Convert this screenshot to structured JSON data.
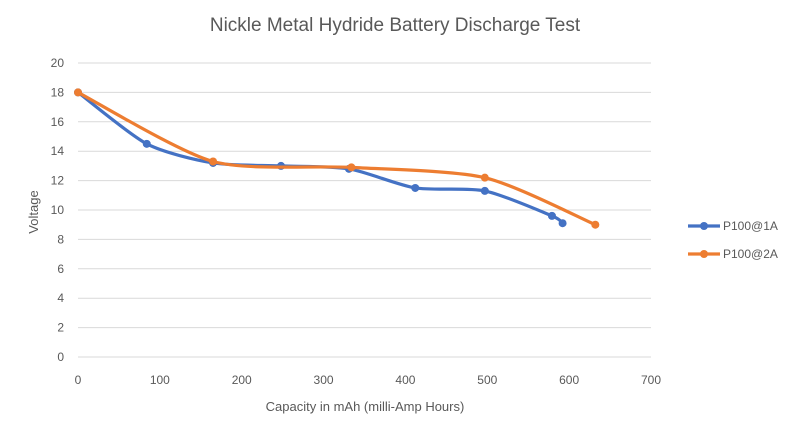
{
  "chart_data": {
    "type": "line",
    "title": "Nickle Metal Hydride Battery  Discharge Test",
    "xlabel": "Capacity in mAh  (milli-Amp Hours)",
    "ylabel": "Voltage",
    "xlim": [
      0,
      700
    ],
    "ylim": [
      0,
      20
    ],
    "xticks": [
      "0",
      "100",
      "200",
      "300",
      "400",
      "500",
      "600",
      "700"
    ],
    "yticks": [
      "0",
      "2",
      "4",
      "6",
      "8",
      "10",
      "12",
      "14",
      "16",
      "18",
      "20"
    ],
    "grid": "horizontal",
    "legend_position": "right",
    "smoothed": true,
    "series": [
      {
        "name": "P100@1A",
        "color": "#4472C4",
        "x": [
          0,
          84,
          165,
          248,
          331,
          412,
          497,
          579,
          592
        ],
        "y": [
          18,
          14.5,
          13.2,
          13.0,
          12.8,
          11.5,
          11.3,
          9.6,
          9.1
        ]
      },
      {
        "name": "P100@2A",
        "color": "#ED7D31",
        "x": [
          0,
          165,
          334,
          497,
          632
        ],
        "y": [
          18,
          13.3,
          12.9,
          12.2,
          9.0
        ]
      }
    ]
  }
}
